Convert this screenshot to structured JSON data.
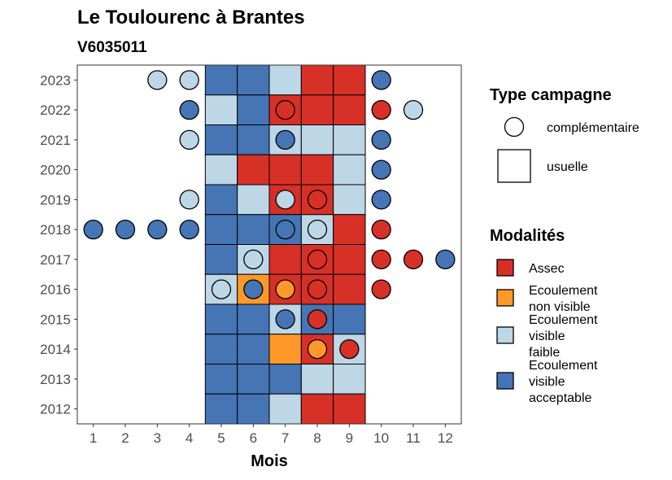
{
  "chart_data": {
    "type": "heatmap",
    "title": "Le Toulourenc à Brantes",
    "subtitle": "V6035011",
    "xlabel": "Mois",
    "ylabel": "",
    "x_ticks": [
      1,
      2,
      3,
      4,
      5,
      6,
      7,
      8,
      9,
      10,
      11,
      12
    ],
    "y_ticks": [
      2012,
      2013,
      2014,
      2015,
      2016,
      2017,
      2018,
      2019,
      2020,
      2021,
      2022,
      2023
    ],
    "xlim": [
      0.5,
      12.5
    ],
    "ylim": [
      2011.5,
      2023.5
    ],
    "colors": {
      "assec": "#d73027",
      "ecoulement_non_visible": "#fe9929",
      "ecoulement_visible_faible": "#bdd7e7",
      "ecoulement_visible_acceptable": "#4575b4"
    },
    "legend_type": {
      "title": "Type campagne",
      "items": [
        {
          "key": "complementaire",
          "label": "complémentaire",
          "shape": "circle"
        },
        {
          "key": "usuelle",
          "label": "usuelle",
          "shape": "square"
        }
      ]
    },
    "legend_modalites": {
      "title": "Modalités",
      "items": [
        {
          "key": "assec",
          "lines": [
            "Assec"
          ]
        },
        {
          "key": "ecoulement_non_visible",
          "lines": [
            "Ecoulement",
            "non visible"
          ]
        },
        {
          "key": "ecoulement_visible_faible",
          "lines": [
            "Ecoulement",
            "visible",
            "faible"
          ]
        },
        {
          "key": "ecoulement_visible_acceptable",
          "lines": [
            "Ecoulement",
            "visible",
            "acceptable"
          ]
        }
      ]
    },
    "usuelle": [
      {
        "year": 2023,
        "cells": {
          "5": "ecoulement_visible_acceptable",
          "6": "ecoulement_visible_acceptable",
          "7": "ecoulement_visible_faible",
          "8": "assec",
          "9": "assec"
        }
      },
      {
        "year": 2022,
        "cells": {
          "5": "ecoulement_visible_faible",
          "6": "ecoulement_visible_acceptable",
          "7": "assec",
          "8": "assec",
          "9": "assec"
        }
      },
      {
        "year": 2021,
        "cells": {
          "5": "ecoulement_visible_acceptable",
          "6": "ecoulement_visible_acceptable",
          "7": "ecoulement_visible_faible",
          "8": "ecoulement_visible_faible",
          "9": "ecoulement_visible_faible"
        }
      },
      {
        "year": 2020,
        "cells": {
          "5": "ecoulement_visible_faible",
          "6": "assec",
          "7": "assec",
          "8": "assec",
          "9": "ecoulement_visible_faible"
        }
      },
      {
        "year": 2019,
        "cells": {
          "5": "ecoulement_visible_acceptable",
          "6": "ecoulement_visible_faible",
          "7": "assec",
          "8": "assec",
          "9": "ecoulement_visible_faible"
        }
      },
      {
        "year": 2018,
        "cells": {
          "5": "ecoulement_visible_acceptable",
          "6": "ecoulement_visible_acceptable",
          "7": "ecoulement_visible_acceptable",
          "8": "ecoulement_visible_faible",
          "9": "assec"
        }
      },
      {
        "year": 2017,
        "cells": {
          "5": "ecoulement_visible_acceptable",
          "6": "ecoulement_visible_faible",
          "7": "assec",
          "8": "assec",
          "9": "assec"
        }
      },
      {
        "year": 2016,
        "cells": {
          "5": "ecoulement_visible_faible",
          "6": "ecoulement_non_visible",
          "7": "assec",
          "8": "assec",
          "9": "assec"
        }
      },
      {
        "year": 2015,
        "cells": {
          "5": "ecoulement_visible_acceptable",
          "6": "ecoulement_visible_acceptable",
          "7": "ecoulement_visible_faible",
          "8": "ecoulement_visible_acceptable",
          "9": "ecoulement_visible_acceptable"
        }
      },
      {
        "year": 2014,
        "cells": {
          "5": "ecoulement_visible_acceptable",
          "6": "ecoulement_visible_acceptable",
          "7": "ecoulement_non_visible",
          "8": "assec",
          "9": "ecoulement_visible_faible"
        }
      },
      {
        "year": 2013,
        "cells": {
          "5": "ecoulement_visible_acceptable",
          "6": "ecoulement_visible_acceptable",
          "7": "ecoulement_visible_acceptable",
          "8": "ecoulement_visible_faible",
          "9": "ecoulement_visible_faible"
        }
      },
      {
        "year": 2012,
        "cells": {
          "5": "ecoulement_visible_acceptable",
          "6": "ecoulement_visible_acceptable",
          "7": "ecoulement_visible_faible",
          "8": "assec",
          "9": "assec"
        }
      }
    ],
    "complementaire": [
      {
        "year": 2023,
        "month": 3,
        "value": "ecoulement_visible_faible"
      },
      {
        "year": 2023,
        "month": 4,
        "value": "ecoulement_visible_faible"
      },
      {
        "year": 2023,
        "month": 10,
        "value": "ecoulement_visible_acceptable"
      },
      {
        "year": 2022,
        "month": 4,
        "value": "ecoulement_visible_acceptable"
      },
      {
        "year": 2022,
        "month": 7,
        "value": "assec"
      },
      {
        "year": 2022,
        "month": 10,
        "value": "assec"
      },
      {
        "year": 2022,
        "month": 11,
        "value": "ecoulement_visible_faible"
      },
      {
        "year": 2021,
        "month": 4,
        "value": "ecoulement_visible_faible"
      },
      {
        "year": 2021,
        "month": 7,
        "value": "ecoulement_visible_acceptable"
      },
      {
        "year": 2021,
        "month": 10,
        "value": "ecoulement_visible_acceptable"
      },
      {
        "year": 2020,
        "month": 10,
        "value": "ecoulement_visible_acceptable"
      },
      {
        "year": 2019,
        "month": 4,
        "value": "ecoulement_visible_faible"
      },
      {
        "year": 2019,
        "month": 7,
        "value": "ecoulement_visible_faible"
      },
      {
        "year": 2019,
        "month": 8,
        "value": "assec"
      },
      {
        "year": 2019,
        "month": 10,
        "value": "ecoulement_visible_acceptable"
      },
      {
        "year": 2018,
        "month": 1,
        "value": "ecoulement_visible_acceptable"
      },
      {
        "year": 2018,
        "month": 2,
        "value": "ecoulement_visible_acceptable"
      },
      {
        "year": 2018,
        "month": 3,
        "value": "ecoulement_visible_acceptable"
      },
      {
        "year": 2018,
        "month": 4,
        "value": "ecoulement_visible_acceptable"
      },
      {
        "year": 2018,
        "month": 7,
        "value": "ecoulement_visible_acceptable"
      },
      {
        "year": 2018,
        "month": 8,
        "value": "ecoulement_visible_faible"
      },
      {
        "year": 2018,
        "month": 10,
        "value": "assec"
      },
      {
        "year": 2017,
        "month": 6,
        "value": "ecoulement_visible_faible"
      },
      {
        "year": 2017,
        "month": 8,
        "value": "assec"
      },
      {
        "year": 2017,
        "month": 10,
        "value": "assec"
      },
      {
        "year": 2017,
        "month": 11,
        "value": "assec"
      },
      {
        "year": 2017,
        "month": 12,
        "value": "ecoulement_visible_acceptable"
      },
      {
        "year": 2016,
        "month": 5,
        "value": "ecoulement_visible_faible"
      },
      {
        "year": 2016,
        "month": 6,
        "value": "ecoulement_visible_acceptable"
      },
      {
        "year": 2016,
        "month": 7,
        "value": "ecoulement_non_visible"
      },
      {
        "year": 2016,
        "month": 8,
        "value": "assec"
      },
      {
        "year": 2016,
        "month": 10,
        "value": "assec"
      },
      {
        "year": 2015,
        "month": 7,
        "value": "ecoulement_visible_acceptable"
      },
      {
        "year": 2015,
        "month": 8,
        "value": "assec"
      },
      {
        "year": 2014,
        "month": 8,
        "value": "ecoulement_non_visible"
      },
      {
        "year": 2014,
        "month": 9,
        "value": "assec"
      }
    ]
  }
}
